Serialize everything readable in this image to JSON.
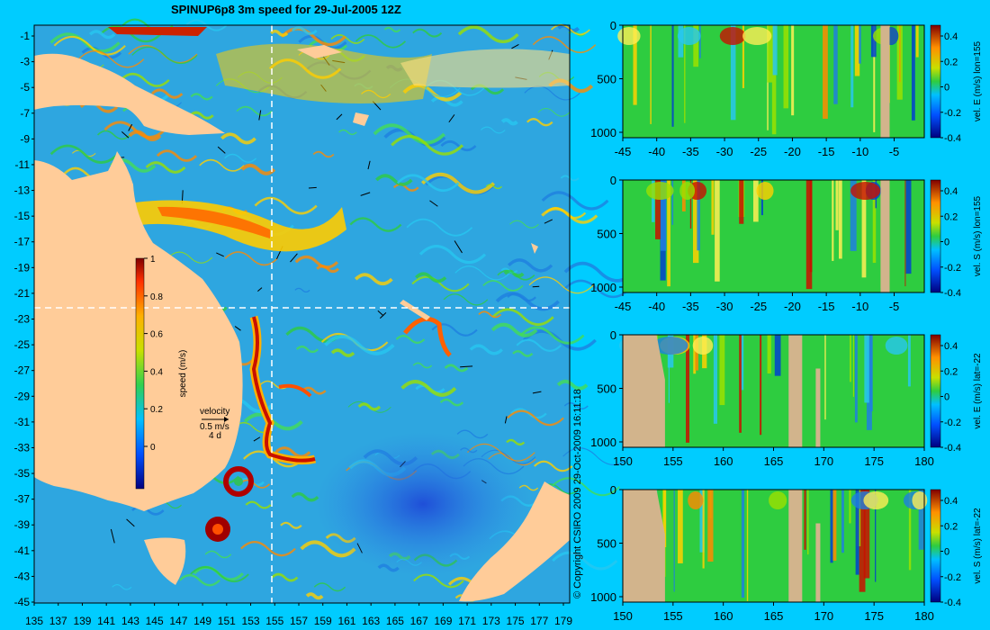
{
  "title": "SPINUP6p8 3m speed for 29-Jul-2005 12Z",
  "colors": {
    "background": "#00ccff",
    "land": "#ffcc99",
    "section_land": "#d2b48c",
    "ocean_low": "#3a8fe0",
    "ocean_mid": "#2ecc40",
    "current_high": "#ffcc00",
    "current_max": "#cc1100"
  },
  "map": {
    "lat_labels": [
      "-1",
      "-3",
      "-5",
      "-7",
      "-9",
      "-11",
      "-13",
      "-15",
      "-17",
      "-19",
      "-21",
      "-23",
      "-25",
      "-27",
      "-29",
      "-31",
      "-33",
      "-35",
      "-37",
      "-39",
      "-41",
      "-43",
      "-45"
    ],
    "lon_labels": [
      "135",
      "137",
      "139",
      "141",
      "143",
      "145",
      "147",
      "149",
      "151",
      "153",
      "155",
      "157",
      "159",
      "161",
      "163",
      "165",
      "167",
      "169",
      "171",
      "173",
      "175",
      "177",
      "179"
    ],
    "crosshair_lon": 155,
    "crosshair_lat": -22,
    "colorbar": {
      "label": "speed (m/s)",
      "ticks": [
        "1",
        "0.8",
        "0.6",
        "0.4",
        "0.2",
        "0"
      ]
    },
    "velocity_key": {
      "title": "velocity",
      "speed": "0.5 m/s",
      "period": "4 d"
    },
    "copyright": "© Copyright CSIRO 2009  29-Oct-2009 16:11:18"
  },
  "sections": [
    {
      "ylabel": "vel. E (m/s) lon=155",
      "x_ticks": [
        "-45",
        "-40",
        "-35",
        "-30",
        "-25",
        "-20",
        "-15",
        "-10",
        "-5"
      ],
      "y_ticks": [
        "0",
        "500",
        "1000"
      ],
      "cb_ticks": [
        "0.4",
        "0.2",
        "0",
        "-0.2",
        "-0.4"
      ]
    },
    {
      "ylabel": "vel. S (m/s) lon=155",
      "x_ticks": [
        "-45",
        "-40",
        "-35",
        "-30",
        "-25",
        "-20",
        "-15",
        "-10",
        "-5"
      ],
      "y_ticks": [
        "0",
        "500",
        "1000"
      ],
      "cb_ticks": [
        "0.4",
        "0.2",
        "0",
        "-0.2",
        "-0.4"
      ]
    },
    {
      "ylabel": "vel. E (m/s) lat=-22",
      "x_ticks": [
        "150",
        "155",
        "160",
        "165",
        "170",
        "175",
        "180"
      ],
      "y_ticks": [
        "0",
        "500",
        "1000"
      ],
      "cb_ticks": [
        "0.4",
        "0.2",
        "0",
        "-0.2",
        "-0.4"
      ]
    },
    {
      "ylabel": "vel. S (m/s) lat=-22",
      "x_ticks": [
        "150",
        "155",
        "160",
        "165",
        "170",
        "175",
        "180"
      ],
      "y_ticks": [
        "0",
        "500",
        "1000"
      ],
      "cb_ticks": [
        "0.4",
        "0.2",
        "0",
        "-0.2",
        "-0.4"
      ]
    }
  ]
}
